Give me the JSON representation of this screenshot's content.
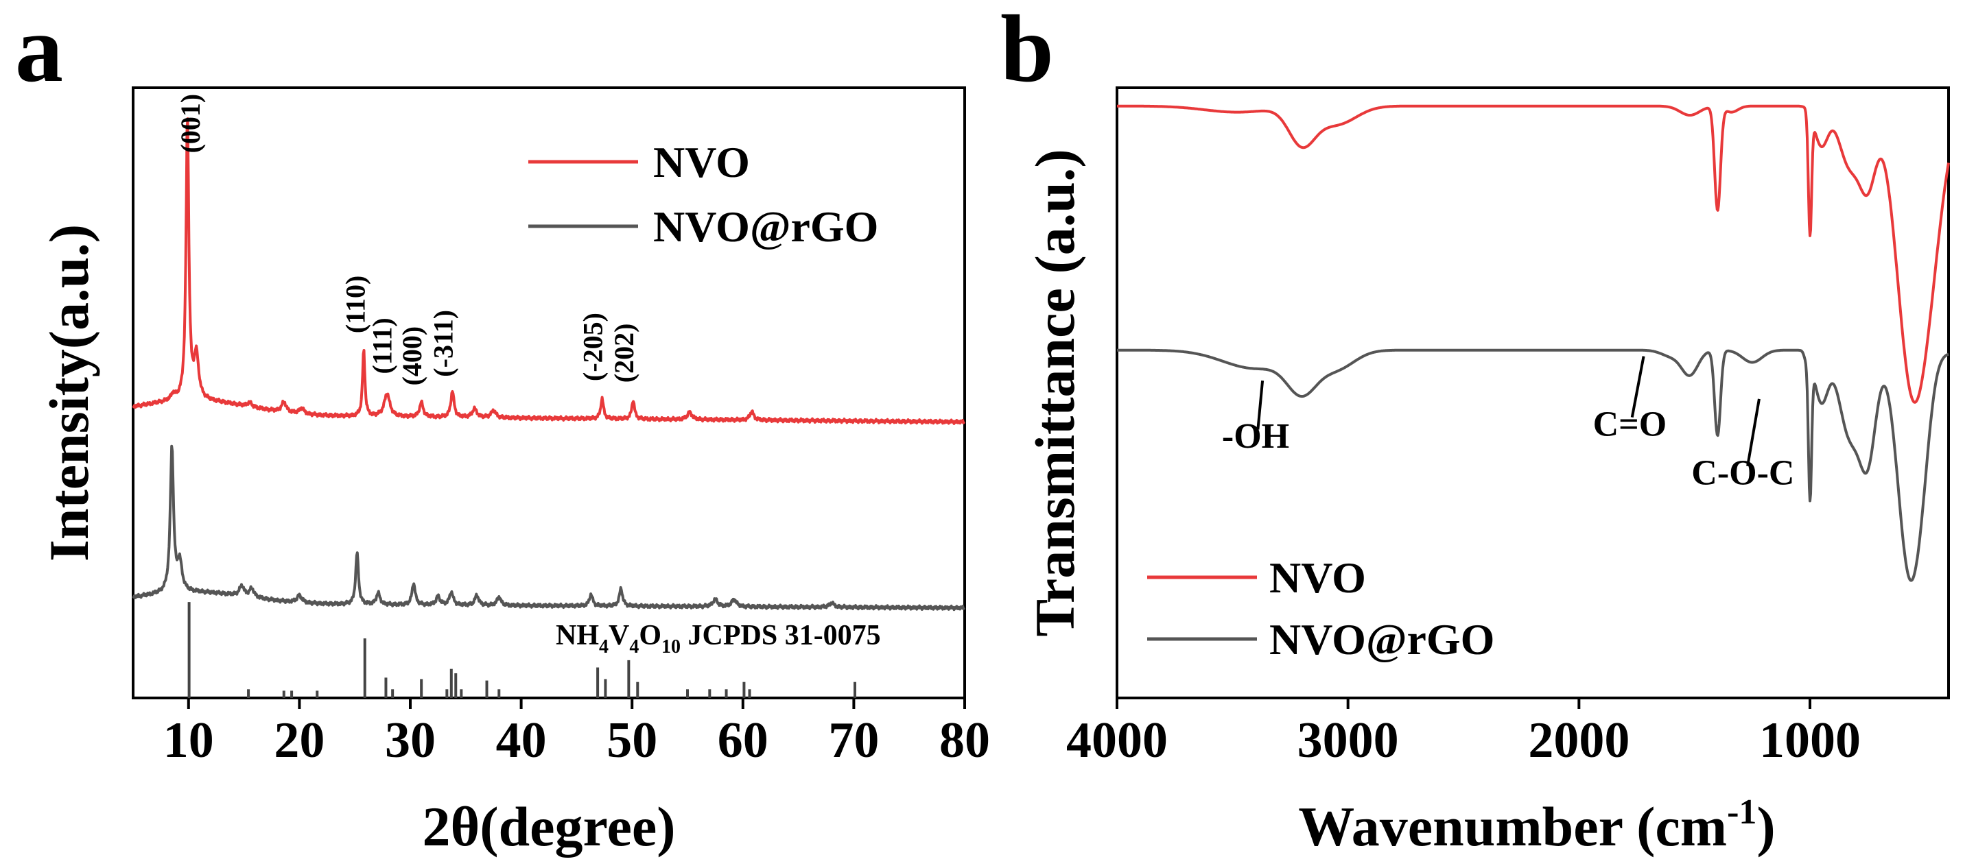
{
  "panels": {
    "a": "a",
    "b": "b"
  },
  "colors": {
    "nvo": "#e8393a",
    "nvo_rgo": "#555555",
    "reference": "#444444",
    "axis": "#000000"
  },
  "chart_data": [
    {
      "id": "a",
      "type": "line",
      "title": "",
      "xlabel": "2θ(degree)",
      "ylabel": "Intensity(a.u.)",
      "xlim": [
        5,
        80
      ],
      "ylim": [
        -1.9,
        2.3
      ],
      "y_ticks_shown": false,
      "x_ticks": [
        10,
        20,
        30,
        40,
        50,
        60,
        70,
        80
      ],
      "legend": {
        "position": "top-right",
        "entries": [
          "NVO",
          "NVO@rGO"
        ]
      },
      "series": [
        {
          "name": "NVO",
          "color": "#e8393a",
          "baseline": 0.05,
          "baseline_end": 0.0,
          "hump": {
            "center": 10.5,
            "height": 0.1,
            "width": 7
          },
          "peaks": [
            [
              9.9,
              1.95,
              0.3
            ],
            [
              10.7,
              0.3,
              0.5
            ],
            [
              8.6,
              0.04,
              0.4
            ],
            [
              15.5,
              0.03,
              0.5
            ],
            [
              18.6,
              0.07,
              0.5
            ],
            [
              20.2,
              0.04,
              0.5
            ],
            [
              25.8,
              0.46,
              0.25
            ],
            [
              27.9,
              0.16,
              0.6
            ],
            [
              31.0,
              0.1,
              0.4
            ],
            [
              33.8,
              0.18,
              0.35
            ],
            [
              35.8,
              0.06,
              0.5
            ],
            [
              37.5,
              0.05,
              0.5
            ],
            [
              47.3,
              0.14,
              0.3
            ],
            [
              50.1,
              0.13,
              0.3
            ],
            [
              55.2,
              0.05,
              0.5
            ],
            [
              60.8,
              0.06,
              0.4
            ]
          ]
        },
        {
          "name": "NVO@rGO",
          "color": "#555555",
          "baseline": -1.25,
          "baseline_end": -1.28,
          "hump": {
            "center": 10.5,
            "height": 0.08,
            "width": 7
          },
          "peaks": [
            [
              8.5,
              1.0,
              0.35
            ],
            [
              9.2,
              0.2,
              0.5
            ],
            [
              14.8,
              0.07,
              0.5
            ],
            [
              15.7,
              0.06,
              0.5
            ],
            [
              20.0,
              0.05,
              0.5
            ],
            [
              25.2,
              0.36,
              0.3
            ],
            [
              27.1,
              0.08,
              0.4
            ],
            [
              30.3,
              0.15,
              0.35
            ],
            [
              32.5,
              0.06,
              0.4
            ],
            [
              33.7,
              0.09,
              0.4
            ],
            [
              36.0,
              0.07,
              0.4
            ],
            [
              38.0,
              0.06,
              0.4
            ],
            [
              46.3,
              0.08,
              0.35
            ],
            [
              49.0,
              0.12,
              0.35
            ],
            [
              57.5,
              0.05,
              0.5
            ],
            [
              59.2,
              0.05,
              0.5
            ],
            [
              68.0,
              0.03,
              0.5
            ]
          ]
        },
        {
          "name": "NH4V4O10 JCPDS 31-0075",
          "type": "stick",
          "color": "#444444",
          "baseline": -1.9,
          "sticks": [
            [
              10.05,
              0.66
            ],
            [
              15.4,
              0.06
            ],
            [
              18.6,
              0.05
            ],
            [
              19.3,
              0.05
            ],
            [
              21.6,
              0.05
            ],
            [
              25.9,
              0.41
            ],
            [
              27.8,
              0.14
            ],
            [
              28.4,
              0.06
            ],
            [
              31.0,
              0.13
            ],
            [
              33.3,
              0.06
            ],
            [
              33.7,
              0.2
            ],
            [
              34.1,
              0.17
            ],
            [
              34.6,
              0.06
            ],
            [
              36.9,
              0.12
            ],
            [
              38.0,
              0.06
            ],
            [
              46.9,
              0.21
            ],
            [
              47.6,
              0.13
            ],
            [
              49.7,
              0.26
            ],
            [
              50.5,
              0.11
            ],
            [
              55.0,
              0.06
            ],
            [
              57.0,
              0.06
            ],
            [
              58.5,
              0.06
            ],
            [
              60.1,
              0.11
            ],
            [
              60.6,
              0.06
            ],
            [
              70.1,
              0.11
            ]
          ]
        }
      ],
      "annotations": [
        {
          "text": "(001)",
          "x": 11.0,
          "y": 1.85
        },
        {
          "text": "(110)",
          "x": 25.9,
          "y": 0.61
        },
        {
          "text": "(111)",
          "x": 28.3,
          "y": 0.33
        },
        {
          "text": "(400)",
          "x": 31.0,
          "y": 0.25
        },
        {
          "text": "(-311)",
          "x": 33.8,
          "y": 0.31
        },
        {
          "text": "(-205)",
          "x": 47.3,
          "y": 0.28
        },
        {
          "text": "(202)",
          "x": 50.1,
          "y": 0.27
        }
      ],
      "reference_label": {
        "main": "NH",
        "sub1": "4",
        "mid1": "V",
        "sub2": "4",
        "mid2": "O",
        "sub3": "10",
        "tail": " JCPDS 31-0075"
      }
    },
    {
      "id": "b",
      "type": "line",
      "title": "",
      "xlabel_main": "Wavenumber (cm",
      "xlabel_sup": "-1",
      "xlabel_close": ")",
      "ylabel": "Transmittance (a.u.)",
      "xlim": [
        4000,
        400
      ],
      "ylim": [
        0,
        1
      ],
      "y_ticks_shown": false,
      "x_ticks": [
        4000,
        3000,
        2000,
        1000
      ],
      "legend": {
        "position": "bottom-left",
        "entries": [
          "NVO",
          "NVO@rGO"
        ]
      },
      "series": [
        {
          "name": "NVO",
          "color": "#e8393a",
          "baseline": 0.97,
          "steps": [
            [
              1000,
              -0.005
            ]
          ],
          "dips": [
            [
              3200,
              0.06,
              80
            ],
            [
              3050,
              0.03,
              120
            ],
            [
              3480,
              0.01,
              200
            ],
            [
              1520,
              0.015,
              60
            ],
            [
              1400,
              0.17,
              18
            ],
            [
              1340,
              0.01,
              40
            ],
            [
              1000,
              0.2,
              10
            ],
            [
              950,
              0.06,
              40
            ],
            [
              830,
              0.09,
              60
            ],
            [
              750,
              0.12,
              50
            ],
            [
              560,
              0.43,
              90
            ],
            [
              470,
              0.15,
              80
            ]
          ]
        },
        {
          "name": "NVO@rGO",
          "color": "#555555",
          "baseline": 0.57,
          "steps": [
            [
              1000,
              -0.005
            ]
          ],
          "dips": [
            [
              3400,
              0.03,
              200
            ],
            [
              3200,
              0.06,
              90
            ],
            [
              3050,
              0.03,
              110
            ],
            [
              1600,
              0.01,
              60
            ],
            [
              1520,
              0.04,
              50
            ],
            [
              1400,
              0.14,
              18
            ],
            [
              1250,
              0.02,
              60
            ],
            [
              1020,
              0.01,
              10
            ],
            [
              1000,
              0.23,
              10
            ],
            [
              950,
              0.08,
              40
            ],
            [
              830,
              0.13,
              60
            ],
            [
              750,
              0.17,
              50
            ],
            [
              570,
              0.35,
              70
            ],
            [
              510,
              0.08,
              50
            ]
          ]
        }
      ],
      "annotations": [
        {
          "text": "-OH",
          "x": 3400,
          "y": 0.41,
          "line_from": [
            3390,
            0.44
          ],
          "line_to": [
            3370,
            0.52
          ]
        },
        {
          "text": "C=O",
          "x": 1780,
          "y": 0.43,
          "line_from": [
            1770,
            0.46
          ],
          "line_to": [
            1720,
            0.56
          ]
        },
        {
          "text": "C-O-C",
          "x": 1290,
          "y": 0.35,
          "line_from": [
            1270,
            0.38
          ],
          "line_to": [
            1220,
            0.49
          ]
        }
      ]
    }
  ]
}
